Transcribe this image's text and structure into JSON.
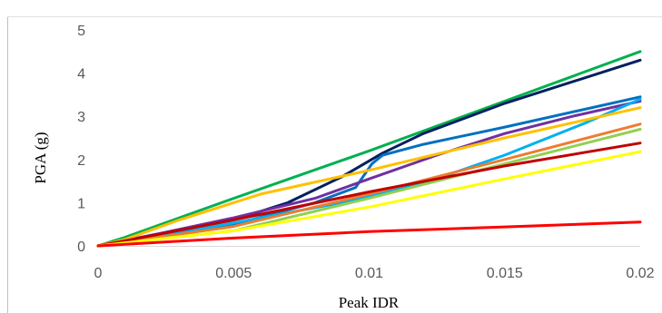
{
  "chart_data": {
    "type": "line",
    "xlabel": "Peak IDR",
    "ylabel": "PGA (g)",
    "xlim": [
      0,
      0.02
    ],
    "ylim": [
      0,
      5
    ],
    "x_ticks": [
      "0",
      "0.005",
      "0.01",
      "0.015",
      "0.02"
    ],
    "y_ticks": [
      "0",
      "1",
      "2",
      "3",
      "4",
      "5"
    ],
    "grid": false,
    "legend": "none",
    "series": [
      {
        "color": "#00b050",
        "x": [
          0,
          0.001,
          0.005,
          0.01,
          0.015,
          0.02
        ],
        "y": [
          0,
          0.2,
          1.1,
          2.2,
          3.35,
          4.5
        ]
      },
      {
        "color": "#002060",
        "x": [
          0,
          0.002,
          0.005,
          0.007,
          0.009,
          0.0105,
          0.012,
          0.015,
          0.0195,
          0.02
        ],
        "y": [
          0,
          0.25,
          0.6,
          1.0,
          1.6,
          2.15,
          2.6,
          3.3,
          4.2,
          4.3
        ]
      },
      {
        "color": "#0070c0",
        "x": [
          0,
          0.002,
          0.005,
          0.008,
          0.0095,
          0.0101,
          0.0105,
          0.012,
          0.015,
          0.02
        ],
        "y": [
          0,
          0.22,
          0.5,
          1.0,
          1.35,
          1.9,
          2.1,
          2.35,
          2.75,
          3.45
        ]
      },
      {
        "color": "#7030a0",
        "x": [
          0,
          0.002,
          0.005,
          0.008,
          0.01,
          0.0125,
          0.015,
          0.0175,
          0.02
        ],
        "y": [
          0,
          0.25,
          0.65,
          1.1,
          1.55,
          2.1,
          2.6,
          3.0,
          3.35
        ]
      },
      {
        "color": "#00b0f0",
        "x": [
          0,
          0.003,
          0.006,
          0.009,
          0.012,
          0.015,
          0.018,
          0.02
        ],
        "y": [
          0,
          0.3,
          0.65,
          1.0,
          1.45,
          2.1,
          2.85,
          3.4
        ]
      },
      {
        "color": "#ffc000",
        "x": [
          0,
          0.001,
          0.003,
          0.006,
          0.01,
          0.015,
          0.02
        ],
        "y": [
          0,
          0.15,
          0.6,
          1.2,
          1.75,
          2.5,
          3.2
        ]
      },
      {
        "color": "#ed7d31",
        "x": [
          0,
          0.005,
          0.01,
          0.015,
          0.02
        ],
        "y": [
          0,
          0.45,
          1.2,
          2.0,
          2.82
        ]
      },
      {
        "color": "#92d050",
        "x": [
          0,
          0.005,
          0.01,
          0.015,
          0.02
        ],
        "y": [
          0,
          0.35,
          1.1,
          1.9,
          2.7
        ]
      },
      {
        "color": "#c00000",
        "x": [
          0,
          0.005,
          0.01,
          0.015,
          0.02
        ],
        "y": [
          0,
          0.6,
          1.25,
          1.85,
          2.38
        ]
      },
      {
        "color": "#ffff00",
        "x": [
          0,
          0.005,
          0.01,
          0.015,
          0.02
        ],
        "y": [
          0,
          0.35,
          0.9,
          1.55,
          2.18
        ]
      },
      {
        "color": "#ff0000",
        "x": [
          0,
          0.005,
          0.01,
          0.015,
          0.02
        ],
        "y": [
          0,
          0.18,
          0.33,
          0.44,
          0.55
        ]
      }
    ]
  }
}
